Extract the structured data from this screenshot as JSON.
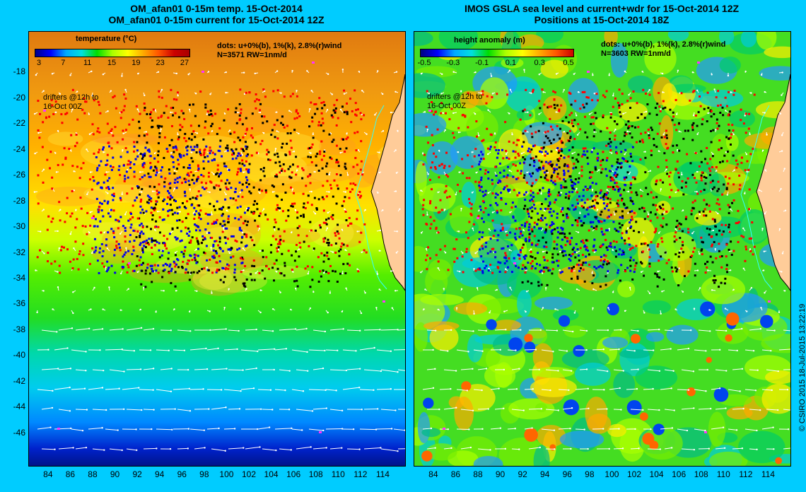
{
  "left": {
    "title_line1": "OM_afan01 0-15m temp. 15-Oct-2014",
    "title_line2": "OM_afan01 0-15m current for 15-Oct-2014 12Z",
    "colorbar_title": "temperature (°C)",
    "colorbar_ticks": [
      "3",
      "7",
      "11",
      "15",
      "19",
      "23",
      "27"
    ],
    "colorbar_colors": [
      "#00008b",
      "#0000ff",
      "#00aaff",
      "#00e0e0",
      "#00dd00",
      "#aaff00",
      "#ffff00",
      "#ffaa00",
      "#ff5500",
      "#cc0000",
      "#aa0000"
    ],
    "dots_line": "dots: u+0%(b), 1%(k), 2.8%(r)wind",
    "count_line": "N=3571  RW=1nm/d",
    "drifter_line1": "drifters @12h to",
    "drifter_line2": "16-Oct 00Z"
  },
  "right": {
    "title_line1": "IMOS GSLA sea level and current+wdr for 15-Oct-2014 12Z",
    "title_line2": "Positions at 15-Oct-2014 18Z",
    "colorbar_title": "height anomaly  (m)",
    "colorbar_ticks": [
      "-0.5",
      "-0.3",
      "-0.1",
      "0.1",
      "0.3",
      "0.5"
    ],
    "colorbar_colors": [
      "#000080",
      "#0000ff",
      "#00aaff",
      "#00e0e0",
      "#00dd00",
      "#aaff00",
      "#ffff00",
      "#ffaa00",
      "#ff5500",
      "#cc0000"
    ],
    "dots_line": "dots: u+0%(b), 1%(k), 2.8%(r)wind",
    "count_line": "N=3603  RW=1nm/d",
    "drifter_line1": "drifters @12h to",
    "drifter_line2": "16-Oct 00Z"
  },
  "axes": {
    "lon_ticks": [
      84,
      86,
      88,
      90,
      92,
      94,
      96,
      98,
      100,
      102,
      104,
      106,
      108,
      110,
      112,
      114
    ],
    "lat_ticks": [
      -18,
      -20,
      -22,
      -24,
      -26,
      -28,
      -30,
      -32,
      -34,
      -36,
      -38,
      -40,
      -42,
      -44,
      -46
    ],
    "lon_range": [
      82.3,
      116
    ],
    "lat_range": [
      -48.6,
      -14.9
    ]
  },
  "copyright": "© CSIRO 2015    18-Jul-2015 13:22:19",
  "colors": {
    "land": "#ffcc99",
    "blue_dots": "#0000ee",
    "black_dots": "#000000",
    "red_dots": "#ff0000",
    "arrows": "#ffffff"
  }
}
